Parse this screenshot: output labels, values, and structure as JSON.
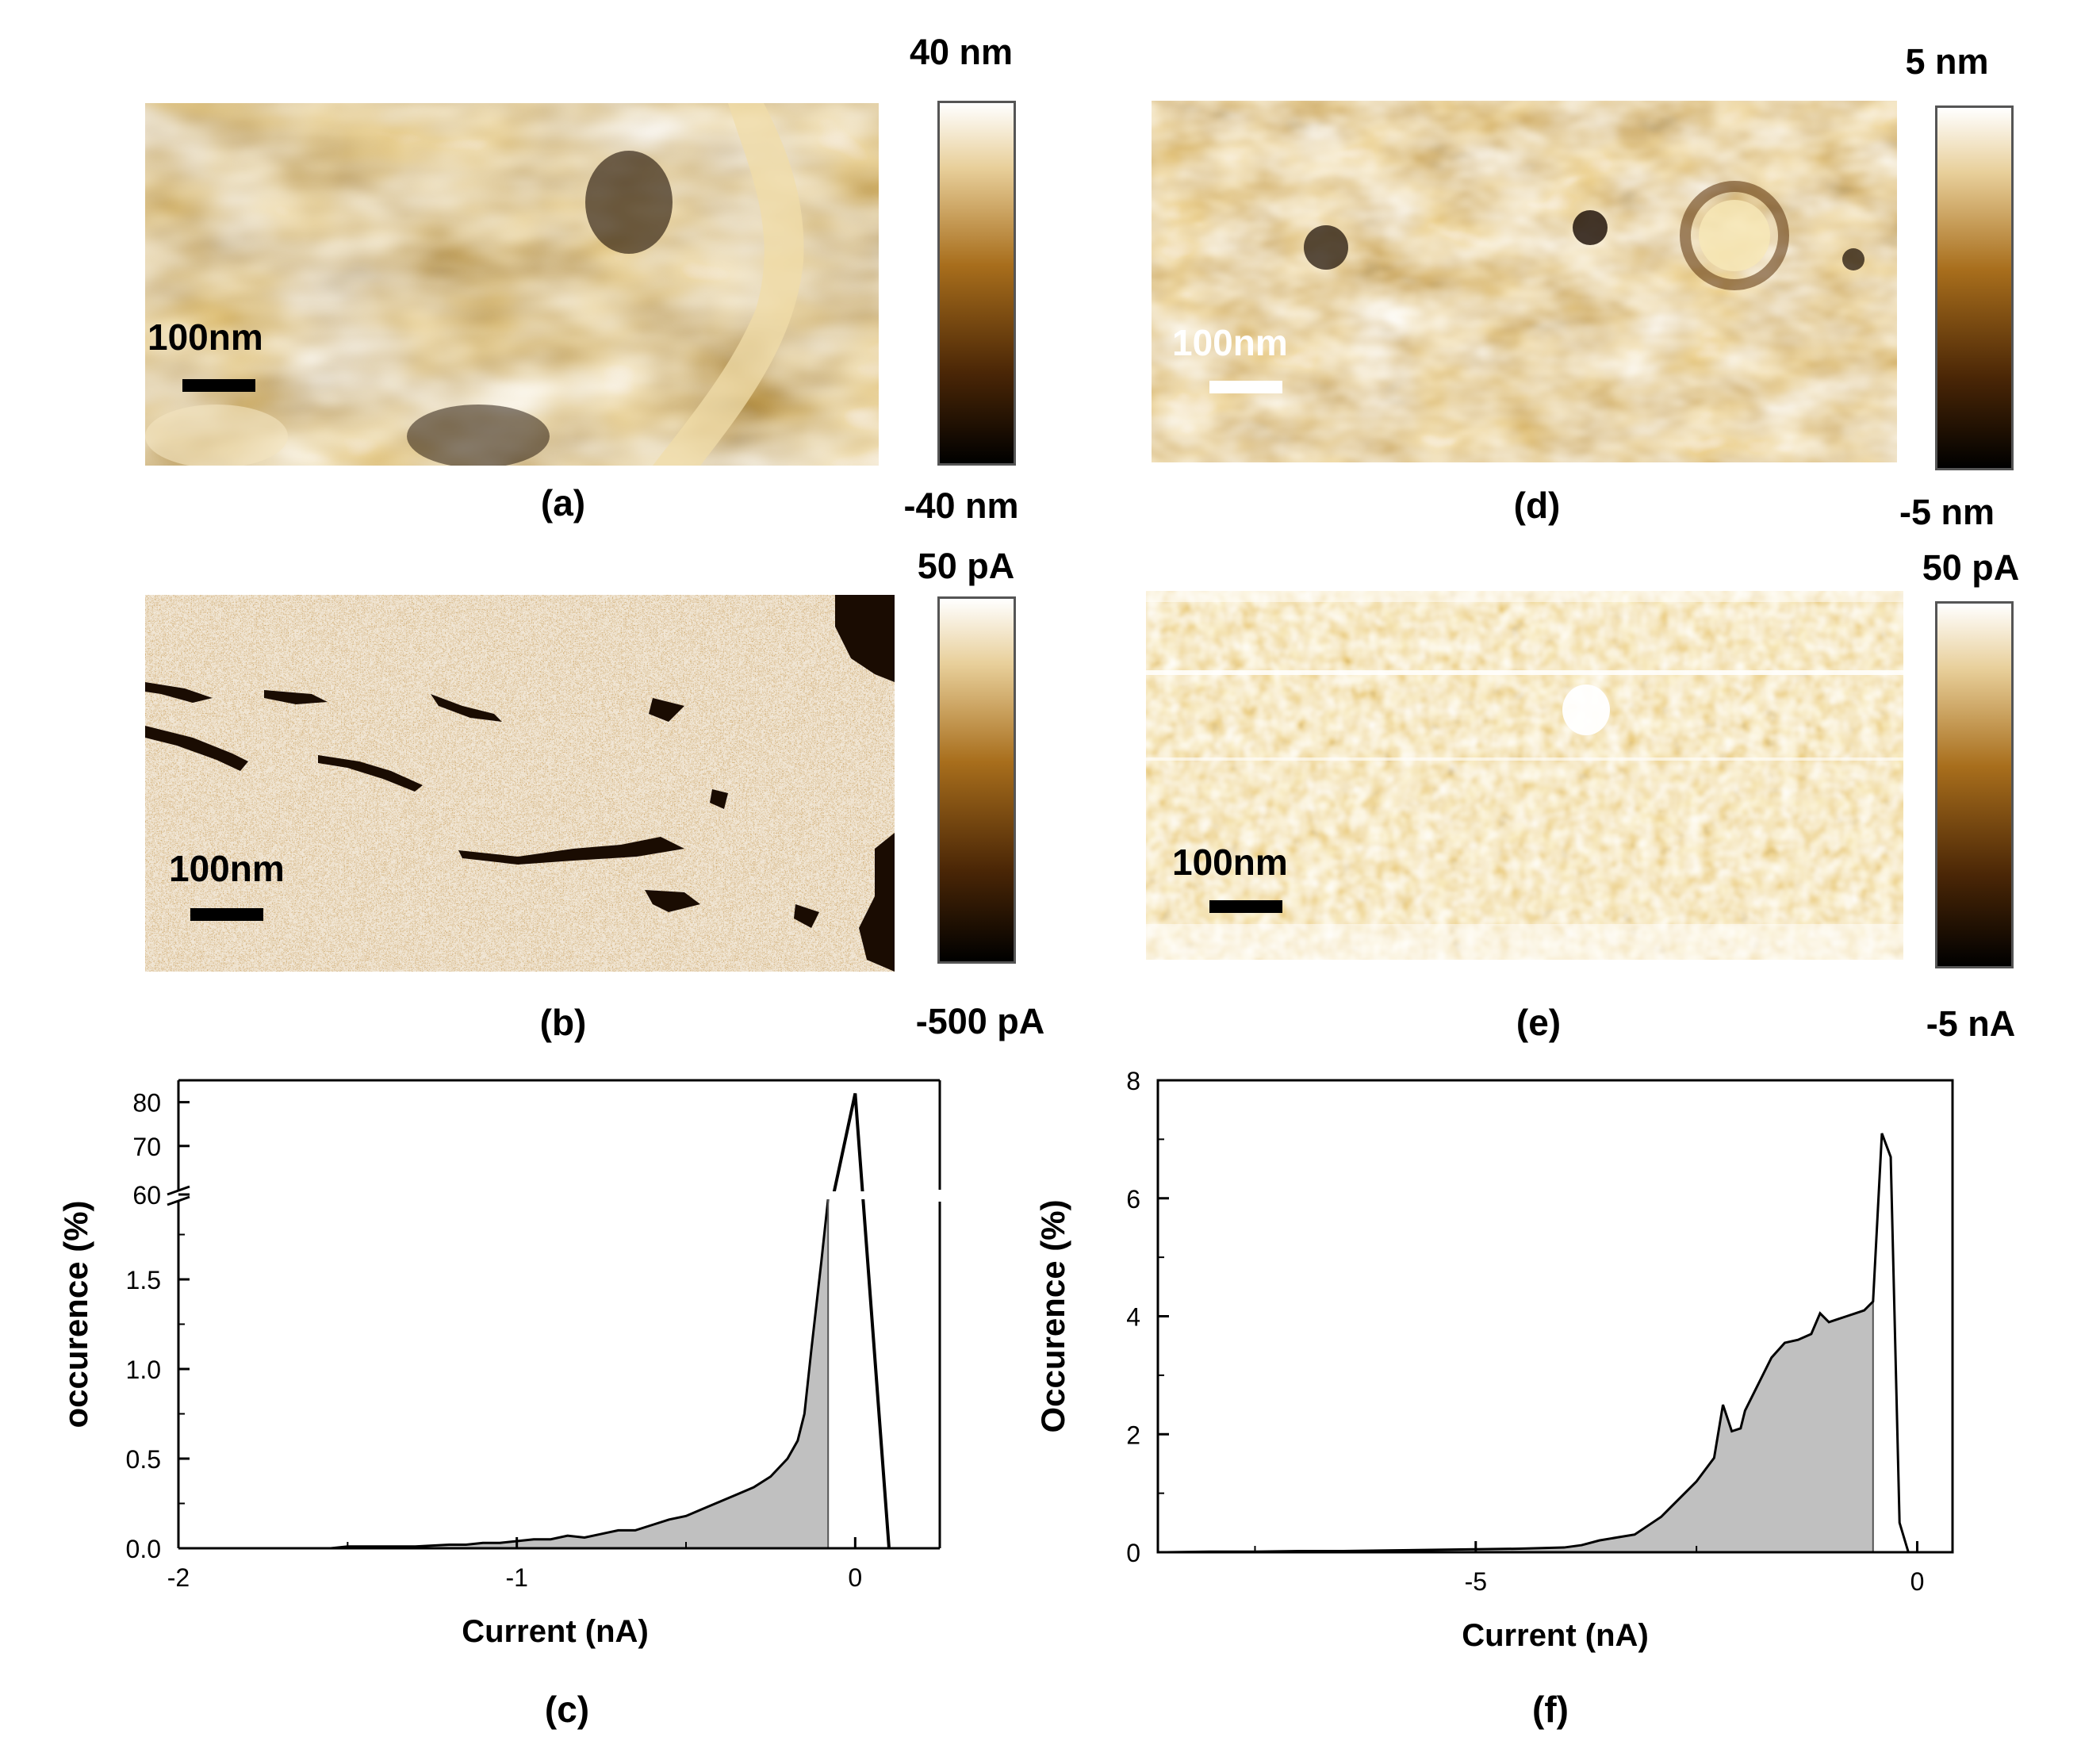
{
  "panels": {
    "a": {
      "label": "(a)",
      "scalebar": "100nm",
      "cb_top": "40 nm",
      "cb_bottom": "-40 nm"
    },
    "b": {
      "label": "(b)",
      "scalebar": "100nm",
      "cb_top": "50 pA",
      "cb_bottom": "-500 pA"
    },
    "c": {
      "label": "(c)"
    },
    "d": {
      "label": "(d)",
      "scalebar": "100nm",
      "cb_top": "5 nm",
      "cb_bottom": "-5 nm"
    },
    "e": {
      "label": "(e)",
      "scalebar": "100nm",
      "cb_top": "50 pA",
      "cb_bottom": "-5 nA"
    },
    "f": {
      "label": "(f)"
    }
  },
  "colors": {
    "afm_dark": "#0a0500",
    "afm_mid": "#8a5a14",
    "afm_light": "#fff8ea",
    "hist_fill": "#c0c0c0"
  },
  "chart_data": [
    {
      "panel": "c",
      "type": "area",
      "xlabel": "Current (nA)",
      "ylabel": "occurence (%)",
      "xlim": [
        -2,
        0.25
      ],
      "xticks": [
        "-2",
        "-1",
        "0"
      ],
      "yticks_lower": [
        "0.0",
        "0.5",
        "1.0",
        "1.5"
      ],
      "yticks_upper": [
        "60",
        "70",
        "80"
      ],
      "axis_break": {
        "lower_range": [
          0,
          2.0
        ],
        "upper_range": [
          60,
          85
        ]
      },
      "series": [
        {
          "x": [
            -1.55,
            -1.5,
            -1.4,
            -1.3,
            -1.2,
            -1.15,
            -1.1,
            -1.05,
            -1.0,
            -0.95,
            -0.9,
            -0.85,
            -0.8,
            -0.75,
            -0.7,
            -0.65,
            -0.6,
            -0.55,
            -0.5,
            -0.45,
            -0.4,
            -0.35,
            -0.3,
            -0.25,
            -0.2,
            -0.17,
            -0.15,
            -0.13,
            -0.1,
            -0.08,
            0.0,
            0.1
          ],
          "y": [
            0.0,
            0.01,
            0.01,
            0.01,
            0.02,
            0.02,
            0.03,
            0.03,
            0.04,
            0.05,
            0.05,
            0.07,
            0.06,
            0.08,
            0.1,
            0.1,
            0.13,
            0.16,
            0.18,
            0.22,
            0.26,
            0.3,
            0.34,
            0.4,
            0.5,
            0.6,
            0.75,
            1.1,
            1.6,
            1.95,
            82,
            0.0
          ]
        }
      ]
    },
    {
      "panel": "f",
      "type": "area",
      "xlabel": "Current (nA)",
      "ylabel": "Occurence (%)",
      "xlim": [
        -8.6,
        0.4
      ],
      "ylim": [
        0,
        8
      ],
      "xticks": [
        "-5",
        "0"
      ],
      "yticks": [
        "0",
        "2",
        "4",
        "6",
        "8"
      ],
      "series": [
        {
          "x": [
            -8.5,
            -8.0,
            -7.5,
            -7.0,
            -6.5,
            -6.0,
            -5.5,
            -5.0,
            -4.5,
            -4.0,
            -3.8,
            -3.6,
            -3.4,
            -3.2,
            -3.0,
            -2.9,
            -2.8,
            -2.7,
            -2.6,
            -2.5,
            -2.4,
            -2.3,
            -2.2,
            -2.1,
            -2.0,
            -1.95,
            -1.85,
            -1.75,
            -1.65,
            -1.5,
            -1.35,
            -1.2,
            -1.1,
            -1.0,
            -0.9,
            -0.8,
            -0.7,
            -0.6,
            -0.5,
            -0.4,
            -0.3,
            -0.2,
            -0.1,
            0.0,
            0.3
          ],
          "y": [
            0.0,
            0.01,
            0.01,
            0.02,
            0.02,
            0.03,
            0.04,
            0.05,
            0.06,
            0.08,
            0.12,
            0.2,
            0.25,
            0.3,
            0.5,
            0.6,
            0.75,
            0.9,
            1.05,
            1.2,
            1.4,
            1.6,
            2.5,
            2.05,
            2.1,
            2.4,
            2.7,
            3.0,
            3.3,
            3.55,
            3.6,
            3.7,
            4.05,
            3.9,
            3.95,
            4.0,
            4.05,
            4.1,
            4.25,
            7.1,
            6.7,
            0.5,
            0.0,
            0.0,
            0.0
          ]
        }
      ]
    }
  ]
}
